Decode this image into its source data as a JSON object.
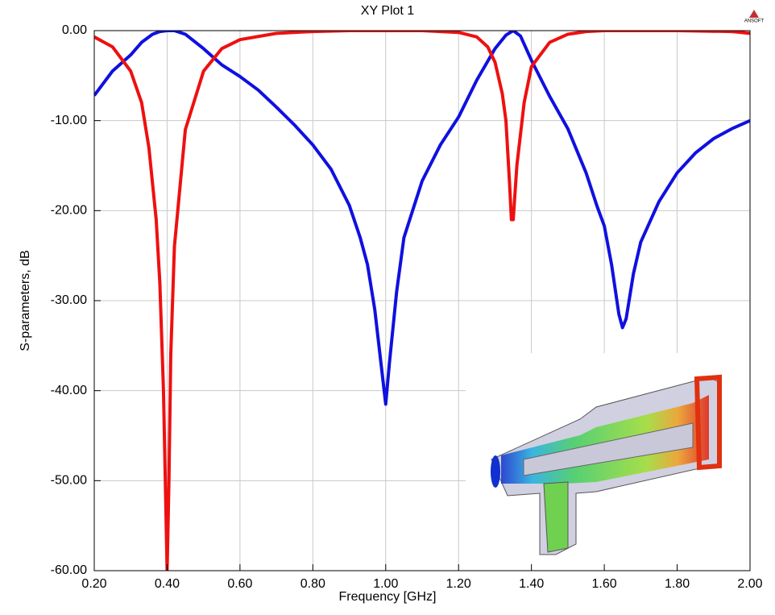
{
  "chart_data": {
    "type": "line",
    "title": "XY Plot 1",
    "logo": "ANSOFT",
    "x_label": "Frequency [GHz]",
    "y_label": "S-parameters, dB",
    "xlim": [
      0.2,
      2.0
    ],
    "ylim": [
      -60,
      0
    ],
    "xticks": [
      {
        "value": 0.2,
        "label": "0.20"
      },
      {
        "value": 0.4,
        "label": "0.40"
      },
      {
        "value": 0.6,
        "label": "0.60"
      },
      {
        "value": 0.8,
        "label": "0.80"
      },
      {
        "value": 1.0,
        "label": "1.00"
      },
      {
        "value": 1.2,
        "label": "1.20"
      },
      {
        "value": 1.4,
        "label": "1.40"
      },
      {
        "value": 1.6,
        "label": "1.60"
      },
      {
        "value": 1.8,
        "label": "1.80"
      },
      {
        "value": 2.0,
        "label": "2.00"
      }
    ],
    "yticks": [
      {
        "value": 0,
        "label": "0.00"
      },
      {
        "value": -10,
        "label": "-10.00"
      },
      {
        "value": -20,
        "label": "-20.00"
      },
      {
        "value": -30,
        "label": "-30.00"
      },
      {
        "value": -40,
        "label": "-40.00"
      },
      {
        "value": -50,
        "label": "-50.00"
      },
      {
        "value": -60,
        "label": "-60.00"
      }
    ],
    "grid": true,
    "series": [
      {
        "color": "#1010e0",
        "x": [
          0.2,
          0.25,
          0.3,
          0.33,
          0.36,
          0.38,
          0.4,
          0.42,
          0.45,
          0.5,
          0.55,
          0.6,
          0.65,
          0.7,
          0.75,
          0.8,
          0.85,
          0.9,
          0.93,
          0.95,
          0.97,
          0.99,
          1.0,
          1.01,
          1.03,
          1.05,
          1.1,
          1.15,
          1.2,
          1.25,
          1.3,
          1.33,
          1.35,
          1.37,
          1.4,
          1.45,
          1.5,
          1.55,
          1.58,
          1.6,
          1.62,
          1.64,
          1.65,
          1.66,
          1.68,
          1.7,
          1.75,
          1.8,
          1.85,
          1.9,
          1.95,
          2.0
        ],
        "values": [
          -7.2,
          -4.5,
          -2.7,
          -1.3,
          -0.4,
          -0.1,
          0,
          0,
          -0.4,
          -2.0,
          -3.8,
          -5.1,
          -6.6,
          -8.5,
          -10.5,
          -12.7,
          -15.4,
          -19.4,
          -23,
          -26,
          -31,
          -38,
          -41.5,
          -37,
          -29,
          -23,
          -16.7,
          -12.7,
          -9.6,
          -5.5,
          -2.0,
          -0.5,
          0,
          -0.6,
          -3.3,
          -7.3,
          -10.9,
          -15.8,
          -19.5,
          -21.7,
          -26,
          -31.5,
          -33,
          -32,
          -27,
          -23.5,
          -19,
          -15.8,
          -13.6,
          -12,
          -10.9,
          -10
        ]
      },
      {
        "color": "#ee1010",
        "x": [
          0.2,
          0.25,
          0.3,
          0.33,
          0.35,
          0.37,
          0.38,
          0.39,
          0.395,
          0.4,
          0.405,
          0.41,
          0.42,
          0.45,
          0.5,
          0.55,
          0.6,
          0.7,
          0.8,
          0.9,
          1.0,
          1.1,
          1.2,
          1.25,
          1.28,
          1.3,
          1.32,
          1.33,
          1.34,
          1.345,
          1.35,
          1.36,
          1.38,
          1.4,
          1.45,
          1.5,
          1.55,
          1.6,
          1.8,
          1.95,
          2.0
        ],
        "values": [
          -0.7,
          -1.8,
          -4.5,
          -8,
          -13,
          -21,
          -28,
          -40,
          -50,
          -60,
          -50,
          -36,
          -24,
          -11,
          -4.5,
          -2.0,
          -1.0,
          -0.3,
          -0.1,
          0,
          0,
          0,
          -0.2,
          -0.7,
          -1.8,
          -3.5,
          -7,
          -10,
          -17,
          -21,
          -21,
          -15,
          -8,
          -4,
          -1.3,
          -0.4,
          -0.1,
          0,
          0,
          -0.1,
          -0.3
        ]
      }
    ]
  }
}
